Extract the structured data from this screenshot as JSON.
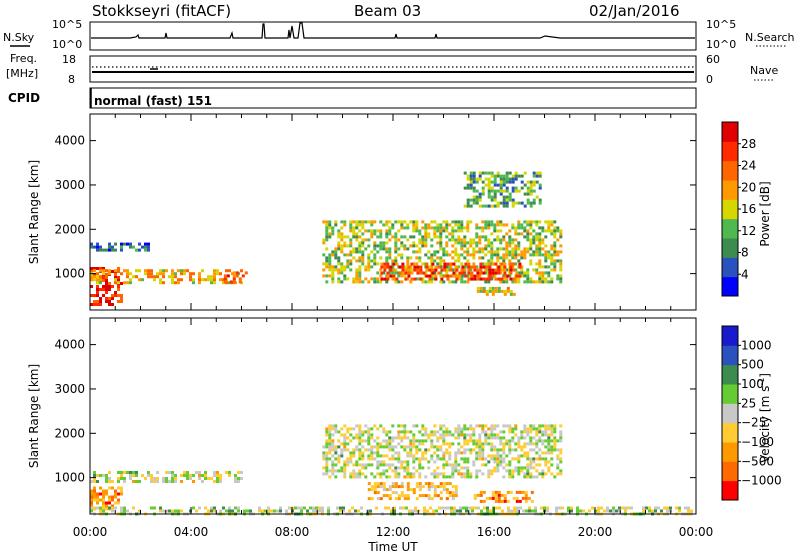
{
  "header": {
    "station": "Stokkseyri (fitACF)",
    "beam": "Beam 03",
    "date": "02/Jan/2016"
  },
  "noise_panel": {
    "left_label": "N.Sky",
    "right_label": "N.Search",
    "ticks": [
      {
        "base": "10",
        "exp": "^5"
      },
      {
        "base": "10",
        "exp": "^0"
      }
    ]
  },
  "freq_panel": {
    "left_label_1": "Freq.",
    "left_label_2": "[MHz]",
    "left_ticks": [
      "18",
      "8"
    ],
    "right_label": "Nave",
    "right_ticks": [
      "60",
      "0"
    ]
  },
  "cpid_panel": {
    "label": "CPID",
    "text": "normal (fast) 151"
  },
  "colors": {
    "power_scale": [
      "#0000ff",
      "#2a52be",
      "#3d8b4f",
      "#4fb94f",
      "#d6d600",
      "#ff9900",
      "#ff6600",
      "#ff2a00",
      "#e00000"
    ],
    "velocity_scale": [
      "#ff0000",
      "#ff6a00",
      "#ff9900",
      "#ffcc33",
      "#c8c8c8",
      "#66cc33",
      "#3d8b4f",
      "#2a52be",
      "#1a1acd"
    ]
  },
  "chart_data": [
    {
      "type": "heatmap",
      "title": "",
      "ylabel": "Slant Range [km]",
      "xlabel": "",
      "ylim": [
        180,
        4600
      ],
      "xlim": [
        "00:00",
        "24:00"
      ],
      "yticks": [
        "1000",
        "2000",
        "3000",
        "4000"
      ],
      "colorbar": {
        "label": "Power [dB]",
        "ticks": [
          "28",
          "24",
          "20",
          "16",
          "12",
          "8",
          "4"
        ],
        "range": [
          0,
          30
        ]
      },
      "echo_regions": [
        {
          "t_start_h": 0.0,
          "t_end_h": 1.3,
          "range_km": [
            300,
            1150
          ],
          "value": 26
        },
        {
          "t_start_h": 0.0,
          "t_end_h": 6.0,
          "range_km": [
            800,
            1100
          ],
          "value": 18
        },
        {
          "t_start_h": 0.0,
          "t_end_h": 2.3,
          "range_km": [
            1500,
            1700
          ],
          "value": 6
        },
        {
          "t_start_h": 5.3,
          "t_end_h": 6.2,
          "range_km": [
            800,
            1050
          ],
          "value": 24
        },
        {
          "t_start_h": 9.2,
          "t_end_h": 18.7,
          "range_km": [
            800,
            2200
          ],
          "value": 14
        },
        {
          "t_start_h": 11.5,
          "t_end_h": 17.0,
          "range_km": [
            900,
            1250
          ],
          "value": 24
        },
        {
          "t_start_h": 15.2,
          "t_end_h": 16.8,
          "range_km": [
            500,
            700
          ],
          "value": 16
        },
        {
          "t_start_h": 14.8,
          "t_end_h": 17.8,
          "range_km": [
            2500,
            3300
          ],
          "value": 10
        }
      ]
    },
    {
      "type": "heatmap",
      "title": "",
      "ylabel": "Slant Range [km]",
      "xlabel": "Time UT",
      "ylim": [
        180,
        4600
      ],
      "xlim": [
        "00:00",
        "24:00"
      ],
      "yticks": [
        "1000",
        "2000",
        "3000",
        "4000"
      ],
      "xticks": [
        "00:00",
        "04:00",
        "08:00",
        "12:00",
        "16:00",
        "20:00",
        "00:00"
      ],
      "colorbar": {
        "label": "Velocity [m s",
        "label_sup": "-1",
        "label_end": "]",
        "ticks": [
          "1000",
          "500",
          "100",
          "25",
          "−25",
          "−100",
          "−500",
          "−1000"
        ],
        "range": [
          -1000,
          1000
        ]
      },
      "echo_regions": [
        {
          "t_start_h": 0.0,
          "t_end_h": 1.3,
          "range_km": [
            300,
            800
          ],
          "value": -500
        },
        {
          "t_start_h": 0.0,
          "t_end_h": 6.0,
          "range_km": [
            900,
            1150
          ],
          "value": 0
        },
        {
          "t_start_h": 9.2,
          "t_end_h": 18.7,
          "range_km": [
            1000,
            2200
          ],
          "value": 0
        },
        {
          "t_start_h": 11.0,
          "t_end_h": 14.5,
          "range_km": [
            500,
            900
          ],
          "value": -300
        },
        {
          "t_start_h": 15.2,
          "t_end_h": 17.5,
          "range_km": [
            450,
            700
          ],
          "value": -500
        },
        {
          "t_start_h": 0.0,
          "t_end_h": 24.0,
          "range_km": [
            180,
            350
          ],
          "value": 60
        }
      ]
    }
  ]
}
